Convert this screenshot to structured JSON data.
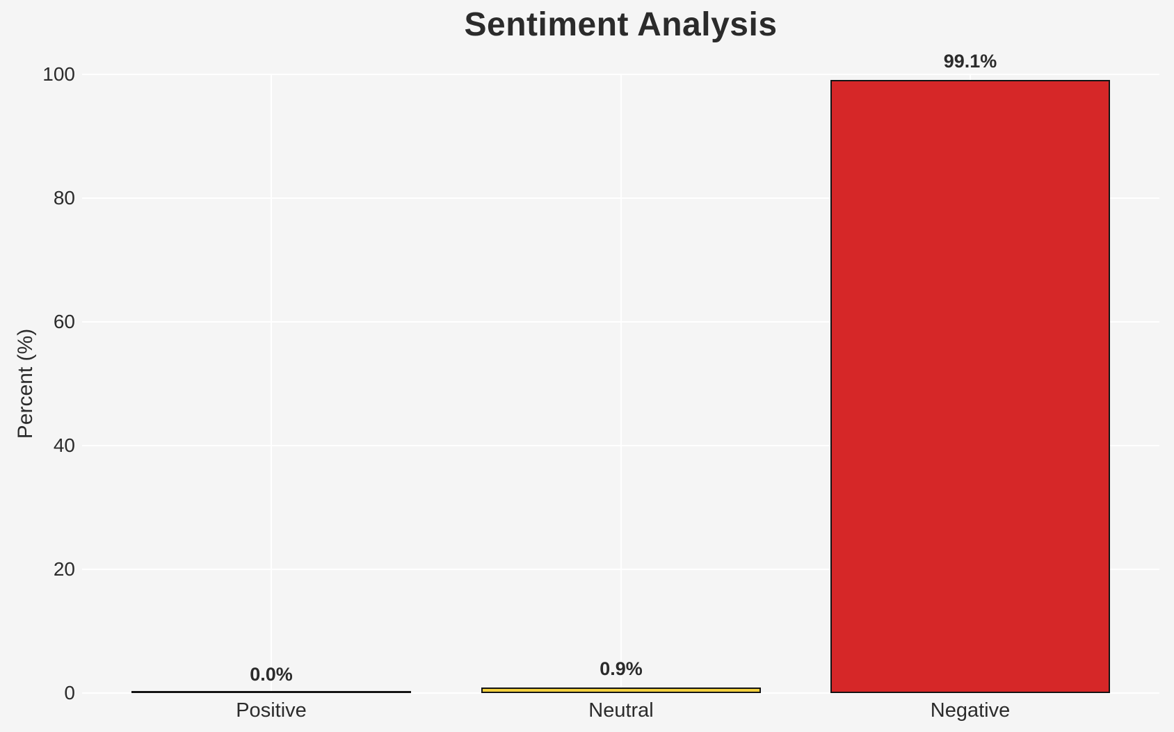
{
  "chart_data": {
    "type": "bar",
    "title": "Sentiment Analysis",
    "xlabel": "",
    "ylabel": "Percent (%)",
    "categories": [
      "Positive",
      "Neutral",
      "Negative"
    ],
    "values": [
      0.0,
      0.9,
      99.1
    ],
    "value_labels": [
      "0.0%",
      "0.9%",
      "99.1%"
    ],
    "bar_colors": [
      "#2ca02c",
      "#f2cf3e",
      "#d62728"
    ],
    "bar_edge_color": "#141414",
    "yticks": [
      0,
      20,
      40,
      60,
      80,
      100
    ],
    "ylim": [
      0,
      100
    ],
    "grid": true,
    "gridline_color": "#ffffff",
    "background_color": "#f5f5f5",
    "text_color": "#2b2b2b",
    "legend": false
  }
}
